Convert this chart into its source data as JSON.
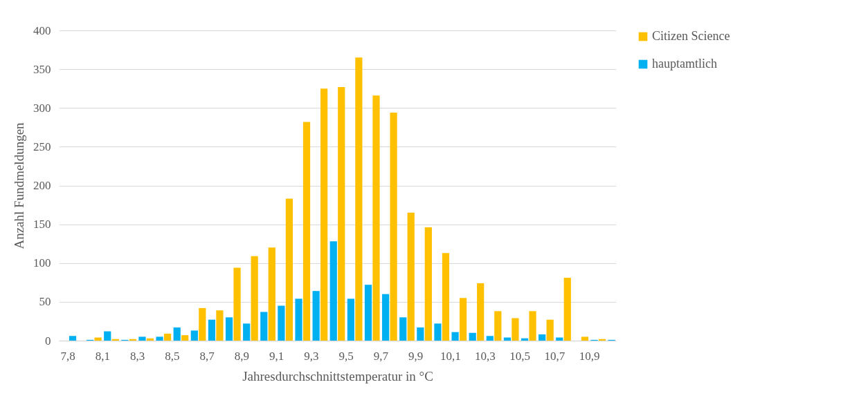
{
  "chart_data": {
    "type": "bar",
    "xlabel": "Jahresdurchschnittstemperatur in °C",
    "ylabel": "Anzahl Fundmeldungen",
    "categories": [
      "7,8",
      null,
      "8,1",
      null,
      "8,3",
      null,
      "8,5",
      null,
      "8,7",
      null,
      "8,9",
      null,
      "9,1",
      null,
      "9,3",
      null,
      "9,5",
      null,
      "9,7",
      null,
      "9,9",
      null,
      "10,1",
      null,
      "10,3",
      null,
      "10,5",
      null,
      "10,7",
      null,
      "10,9",
      null
    ],
    "series": [
      {
        "name": "Citizen Science",
        "color": "#ffc000",
        "values": [
          0,
          0,
          4,
          2,
          2,
          3,
          9,
          7,
          42,
          39,
          94,
          109,
          120,
          183,
          282,
          325,
          327,
          365,
          316,
          294,
          165,
          146,
          113,
          55,
          74,
          38,
          29,
          38,
          27,
          81,
          5,
          2
        ]
      },
      {
        "name": "hauptamtlich",
        "color": "#00b0f0",
        "values": [
          6,
          1,
          12,
          1,
          5,
          5,
          17,
          13,
          27,
          30,
          22,
          37,
          45,
          54,
          64,
          128,
          54,
          72,
          60,
          30,
          17,
          22,
          11,
          10,
          6,
          4,
          3,
          8,
          4,
          0,
          1,
          1
        ]
      }
    ],
    "ylim": [
      0,
      400
    ],
    "yticks": [
      0,
      50,
      100,
      150,
      200,
      250,
      300,
      350,
      400
    ],
    "grid": "y",
    "legend": "right"
  }
}
